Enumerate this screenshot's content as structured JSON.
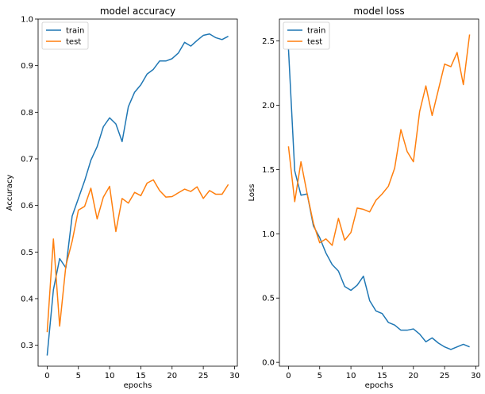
{
  "chart_data": [
    {
      "type": "line",
      "title": "model accuracy",
      "xlabel": "epochs",
      "ylabel": "Accuracy",
      "xlim": [
        -1.45,
        30.45
      ],
      "ylim": [
        0.255,
        1.0
      ],
      "xticks": [
        0,
        5,
        10,
        15,
        20,
        25,
        30
      ],
      "yticks": [
        0.3,
        0.4,
        0.5,
        0.6,
        0.7,
        0.8,
        0.9,
        1.0
      ],
      "ytick_labels": [
        "0.3",
        "0.4",
        "0.5",
        "0.6",
        "0.7",
        "0.8",
        "0.9",
        "1.0"
      ],
      "legend": "upper left",
      "grid": false,
      "x": [
        0,
        1,
        2,
        3,
        4,
        5,
        6,
        7,
        8,
        9,
        10,
        11,
        12,
        13,
        14,
        15,
        16,
        17,
        18,
        19,
        20,
        21,
        22,
        23,
        24,
        25,
        26,
        27,
        28,
        29
      ],
      "series": [
        {
          "name": "train",
          "color": "#1f77b4",
          "values": [
            0.278,
            0.419,
            0.486,
            0.466,
            0.577,
            0.615,
            0.653,
            0.697,
            0.726,
            0.769,
            0.788,
            0.775,
            0.737,
            0.812,
            0.843,
            0.859,
            0.882,
            0.892,
            0.91,
            0.91,
            0.915,
            0.927,
            0.95,
            0.942,
            0.954,
            0.965,
            0.968,
            0.96,
            0.956,
            0.963
          ]
        },
        {
          "name": "test",
          "color": "#ff7f0e",
          "values": [
            0.328,
            0.528,
            0.341,
            0.471,
            0.523,
            0.59,
            0.598,
            0.637,
            0.571,
            0.618,
            0.641,
            0.544,
            0.615,
            0.605,
            0.628,
            0.621,
            0.648,
            0.655,
            0.632,
            0.618,
            0.619,
            0.627,
            0.635,
            0.63,
            0.64,
            0.615,
            0.632,
            0.624,
            0.624,
            0.645
          ]
        }
      ]
    },
    {
      "type": "line",
      "title": "model loss",
      "xlabel": "epochs",
      "ylabel": "Loss",
      "xlim": [
        -1.45,
        30.45
      ],
      "ylim": [
        -0.03,
        2.67
      ],
      "xticks": [
        0,
        5,
        10,
        15,
        20,
        25,
        30
      ],
      "yticks": [
        0.0,
        0.5,
        1.0,
        1.5,
        2.0,
        2.5
      ],
      "ytick_labels": [
        "0.0",
        "0.5",
        "1.0",
        "1.5",
        "2.0",
        "2.5"
      ],
      "legend": "upper left",
      "grid": false,
      "x": [
        0,
        1,
        2,
        3,
        4,
        5,
        6,
        7,
        8,
        9,
        10,
        11,
        12,
        13,
        14,
        15,
        16,
        17,
        18,
        19,
        20,
        21,
        22,
        23,
        24,
        25,
        26,
        27,
        28,
        29
      ],
      "series": [
        {
          "name": "train",
          "color": "#1f77b4",
          "values": [
            2.44,
            1.49,
            1.3,
            1.31,
            1.06,
            0.97,
            0.85,
            0.76,
            0.71,
            0.59,
            0.56,
            0.6,
            0.67,
            0.48,
            0.4,
            0.38,
            0.31,
            0.29,
            0.25,
            0.25,
            0.26,
            0.22,
            0.16,
            0.19,
            0.15,
            0.12,
            0.1,
            0.12,
            0.14,
            0.12
          ]
        },
        {
          "name": "test",
          "color": "#ff7f0e",
          "values": [
            1.68,
            1.25,
            1.56,
            1.31,
            1.08,
            0.93,
            0.96,
            0.91,
            1.12,
            0.95,
            1.01,
            1.2,
            1.19,
            1.17,
            1.26,
            1.31,
            1.37,
            1.51,
            1.81,
            1.64,
            1.56,
            1.95,
            2.15,
            1.92,
            2.12,
            2.32,
            2.3,
            2.41,
            2.16,
            2.55
          ]
        }
      ]
    }
  ]
}
